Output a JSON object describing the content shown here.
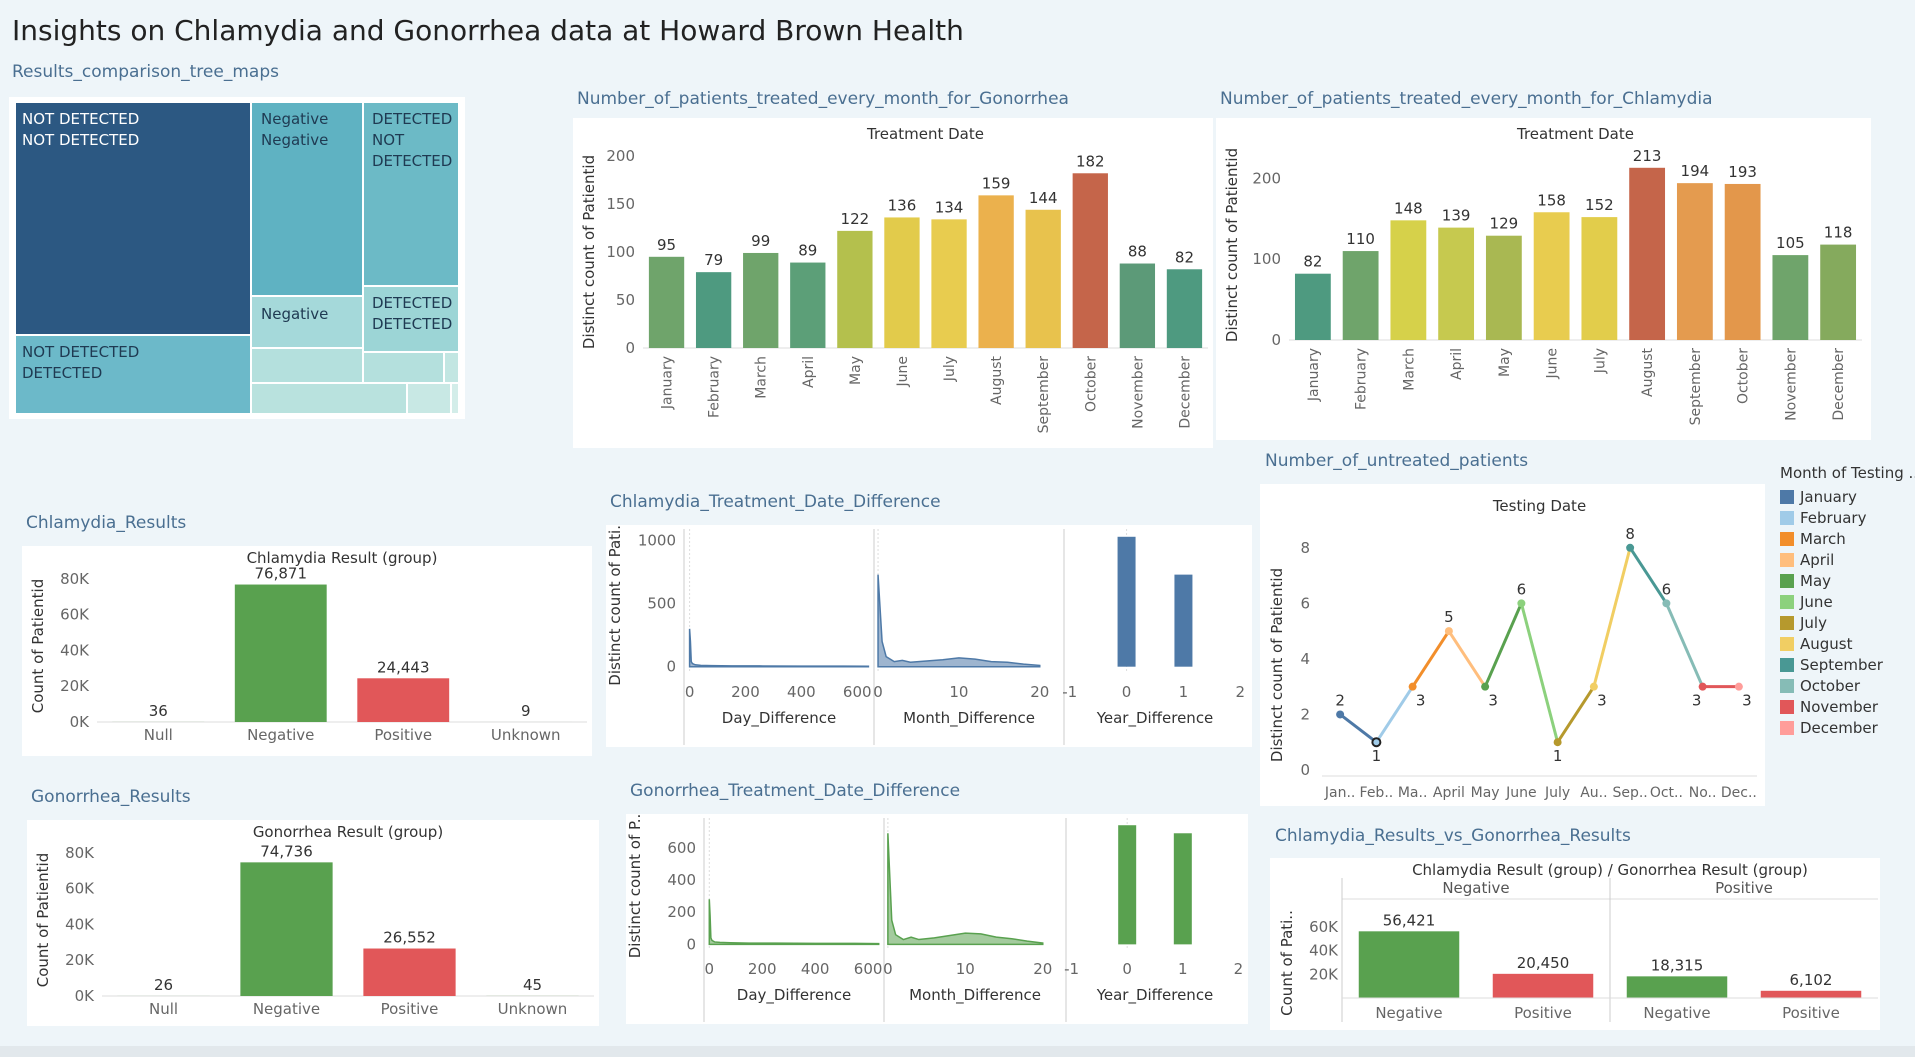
{
  "dashboard_title": "Insights on Chlamydia and Gonorrhea data at Howard Brown Health",
  "sheets": {
    "treemap": "Results_comparison_tree_maps",
    "gon_month": "Number_of_patients_treated_every_month_for_Gonorrhea",
    "chl_month": "Number_of_patients_treated_every_month_for_Chlamydia",
    "untreated": "Number_of_untreated_patients",
    "chl_results": "Chlamydia_Results",
    "gon_results": "Gonorrhea_Results",
    "chl_diff": "Chlamydia_Treatment_Date_Difference",
    "gon_diff": "Gonorrhea_Treatment_Date_Difference",
    "vs": "Chlamydia_Results_vs_Gonorrhea_Results"
  },
  "legend": {
    "title": "Month of Testing ...",
    "items": [
      {
        "label": "January",
        "color": "#4e79a7"
      },
      {
        "label": "February",
        "color": "#a0cbe8"
      },
      {
        "label": "March",
        "color": "#f28e2b"
      },
      {
        "label": "April",
        "color": "#ffbe7d"
      },
      {
        "label": "May",
        "color": "#59a14f"
      },
      {
        "label": "June",
        "color": "#8cd17d"
      },
      {
        "label": "July",
        "color": "#b6992d"
      },
      {
        "label": "August",
        "color": "#f1ce63"
      },
      {
        "label": "September",
        "color": "#499894"
      },
      {
        "label": "October",
        "color": "#86bcb6"
      },
      {
        "label": "November",
        "color": "#e15759"
      },
      {
        "label": "December",
        "color": "#ff9d9a"
      }
    ]
  },
  "treemap_labels": {
    "nd_nd": [
      "NOT DETECTED",
      "NOT DETECTED"
    ],
    "nd_d": [
      "NOT DETECTED",
      "DETECTED"
    ],
    "neg_neg": [
      "Negative",
      "Negative"
    ],
    "neg": [
      "Negative"
    ],
    "d_nd": [
      "DETECTED",
      "NOT",
      "DETECTED"
    ],
    "d_d": [
      "DETECTED",
      "DETECTED"
    ]
  },
  "chart_data": [
    {
      "id": "gon_month",
      "type": "bar",
      "title": "Treatment Date",
      "ylabel": "Distinct count of Patientid",
      "categories": [
        "January",
        "February",
        "March",
        "April",
        "May",
        "June",
        "July",
        "August",
        "September",
        "October",
        "November",
        "December"
      ],
      "values": [
        95,
        79,
        99,
        89,
        122,
        136,
        134,
        159,
        144,
        182,
        88,
        82
      ],
      "ylim": [
        0,
        200
      ],
      "yticks": [
        0,
        50,
        100,
        150,
        200
      ],
      "colors": [
        "#6fa46b",
        "#4e9a80",
        "#6fa46b",
        "#5c9f78",
        "#b4c04d",
        "#e2cb4b",
        "#e8cc4f",
        "#ebb14d",
        "#e8c24d",
        "#c5654a",
        "#5c9a78",
        "#4e9a80"
      ]
    },
    {
      "id": "chl_month",
      "type": "bar",
      "title": "Treatment Date",
      "ylabel": "Distinct count of Patientid",
      "categories": [
        "January",
        "February",
        "March",
        "April",
        "May",
        "June",
        "July",
        "August",
        "September",
        "October",
        "November",
        "December"
      ],
      "values": [
        82,
        110,
        148,
        139,
        129,
        158,
        152,
        213,
        194,
        193,
        105,
        118
      ],
      "ylim": [
        0,
        235
      ],
      "yticks": [
        0,
        100,
        200
      ],
      "colors": [
        "#4e9a80",
        "#6fa46b",
        "#d6d14a",
        "#c6c94f",
        "#a9b852",
        "#e8cc4f",
        "#e2cd4b",
        "#c5654a",
        "#e49b4f",
        "#e3974b",
        "#6fa46b",
        "#85aa5d"
      ]
    },
    {
      "id": "chl_results",
      "type": "bar",
      "title": "Chlamydia Result (group)",
      "ylabel": "Count of Patientid",
      "categories": [
        "Null",
        "Negative",
        "Positive",
        "Unknown"
      ],
      "values": [
        36,
        76871,
        24443,
        9
      ],
      "value_labels": [
        "36",
        "76,871",
        "24,443",
        "9"
      ],
      "ylim": [
        0,
        85000
      ],
      "yticks": [
        0,
        20000,
        40000,
        60000,
        80000
      ],
      "ytick_labels": [
        "0K",
        "20K",
        "40K",
        "60K",
        "80K"
      ],
      "colors": [
        "#59a14f",
        "#59a14f",
        "#e15759",
        "#59a14f"
      ]
    },
    {
      "id": "gon_results",
      "type": "bar",
      "title": "Gonorrhea Result (group)",
      "ylabel": "Count of Patientid",
      "categories": [
        "Null",
        "Negative",
        "Positive",
        "Unknown"
      ],
      "values": [
        26,
        74736,
        26552,
        45
      ],
      "value_labels": [
        "26",
        "74,736",
        "26,552",
        "45"
      ],
      "ylim": [
        0,
        85000
      ],
      "yticks": [
        0,
        20000,
        40000,
        60000,
        80000
      ],
      "ytick_labels": [
        "0K",
        "20K",
        "40K",
        "60K",
        "80K"
      ],
      "colors": [
        "#59a14f",
        "#59a14f",
        "#e15759",
        "#59a14f"
      ]
    },
    {
      "id": "untreated",
      "type": "line",
      "title": "Testing Date",
      "ylabel": "Distinct count of Patientid",
      "categories": [
        "Jan..",
        "Feb..",
        "Ma..",
        "April",
        "May",
        "June",
        "July",
        "Au..",
        "Sep..",
        "Oct..",
        "No..",
        "Dec.."
      ],
      "values": [
        2,
        1,
        3,
        5,
        3,
        6,
        1,
        3,
        8,
        6,
        3,
        3
      ],
      "ylim": [
        0,
        9
      ],
      "yticks": [
        0,
        2,
        4,
        6,
        8
      ],
      "colors": [
        "#4e79a7",
        "#a0cbe8",
        "#f28e2b",
        "#ffbe7d",
        "#59a14f",
        "#8cd17d",
        "#b6992d",
        "#f1ce63",
        "#499894",
        "#86bcb6",
        "#e15759",
        "#ff9d9a"
      ]
    },
    {
      "id": "chl_diff",
      "type": "area",
      "ylabel": "Distinct count of Pati..",
      "panels": [
        {
          "xlabel": "Day_Difference",
          "xticks": [
            0,
            200,
            400,
            600
          ],
          "xlim": [
            -20,
            660
          ],
          "x": [
            0,
            3,
            6,
            10,
            20,
            40,
            80,
            150,
            250,
            400,
            550,
            640
          ],
          "y": [
            300,
            200,
            40,
            25,
            15,
            10,
            8,
            6,
            6,
            5,
            5,
            4
          ]
        },
        {
          "xlabel": "Month_Difference",
          "xticks": [
            0,
            10,
            20
          ],
          "xlim": [
            -0.5,
            23
          ],
          "x": [
            0,
            0.5,
            1,
            2,
            3,
            4,
            6,
            8,
            10,
            12,
            14,
            16,
            18,
            20
          ],
          "y": [
            730,
            200,
            80,
            40,
            50,
            35,
            45,
            55,
            70,
            60,
            40,
            35,
            20,
            10
          ]
        },
        {
          "xlabel": "Year_Difference",
          "xticks": [
            -1,
            0,
            1,
            2
          ],
          "xlim": [
            -1.1,
            2.1
          ],
          "bars": true,
          "x": [
            0,
            1
          ],
          "y": [
            1030,
            730
          ]
        }
      ],
      "ylim": [
        -50,
        1060
      ],
      "yticks": [
        0,
        500,
        1000
      ],
      "color": "#4e79a7"
    },
    {
      "id": "gon_diff",
      "type": "area",
      "ylabel": "Distinct count of P..",
      "panels": [
        {
          "xlabel": "Day_Difference",
          "xticks": [
            0,
            200,
            400,
            600
          ],
          "xlim": [
            -20,
            660
          ],
          "x": [
            0,
            3,
            6,
            10,
            20,
            40,
            80,
            150,
            250,
            400,
            550,
            640
          ],
          "y": [
            280,
            180,
            40,
            25,
            15,
            12,
            10,
            8,
            8,
            6,
            6,
            5
          ]
        },
        {
          "xlabel": "Month_Difference",
          "xticks": [
            0,
            10,
            20
          ],
          "xlim": [
            -0.5,
            23
          ],
          "x": [
            0,
            0.5,
            1,
            2,
            3,
            4,
            6,
            8,
            10,
            12,
            14,
            16,
            18,
            20
          ],
          "y": [
            690,
            150,
            60,
            30,
            45,
            30,
            40,
            55,
            70,
            65,
            45,
            35,
            20,
            8
          ]
        },
        {
          "xlabel": "Year_Difference",
          "xticks": [
            -1,
            0,
            1,
            2
          ],
          "xlim": [
            -1.1,
            2.1
          ],
          "bars": true,
          "x": [
            0,
            1
          ],
          "y": [
            740,
            690
          ]
        }
      ],
      "ylim": [
        -35,
        760
      ],
      "yticks": [
        0,
        200,
        400,
        600
      ],
      "color": "#59a14f"
    },
    {
      "id": "vs",
      "type": "bar",
      "title": "Chlamydia Result (group)  /  Gonorrhea Result (group)",
      "ylabel": "Count of Pati..",
      "groups": [
        {
          "name": "Negative",
          "categories": [
            "Negative",
            "Positive"
          ],
          "values": [
            56421,
            20450
          ],
          "value_labels": [
            "56,421",
            "20,450"
          ]
        },
        {
          "name": "Positive",
          "categories": [
            "Negative",
            "Positive"
          ],
          "values": [
            18315,
            6102
          ],
          "value_labels": [
            "18,315",
            "6,102"
          ]
        }
      ],
      "ylim": [
        0,
        66000
      ],
      "yticks": [
        20000,
        40000,
        60000
      ],
      "ytick_labels": [
        "20K",
        "40K",
        "60K"
      ],
      "colors": [
        "#59a14f",
        "#e15759"
      ]
    }
  ]
}
